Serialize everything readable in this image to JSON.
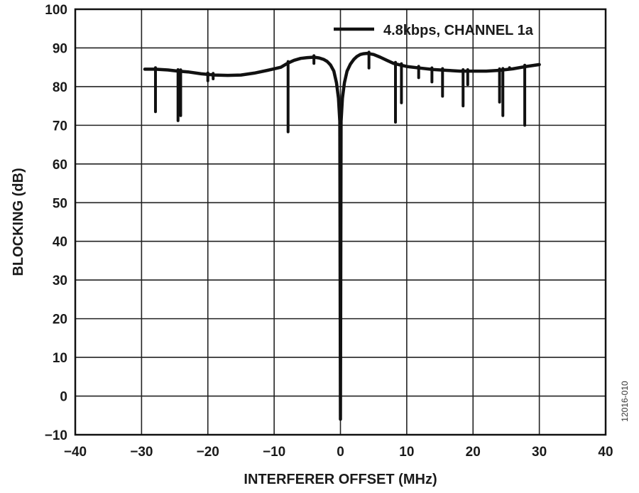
{
  "chart_data": {
    "type": "line",
    "title": "",
    "xlabel": "INTERFERER OFFSET (MHz)",
    "ylabel": "BLOCKING (dB)",
    "xlim": [
      -40,
      40
    ],
    "ylim": [
      -10,
      100
    ],
    "xticks": [
      -40,
      -30,
      -20,
      -10,
      0,
      10,
      20,
      30,
      40
    ],
    "yticks": [
      -10,
      0,
      10,
      20,
      30,
      40,
      50,
      60,
      70,
      80,
      90,
      100
    ],
    "xtick_labels": [
      "−40",
      "−30",
      "−20",
      "−10",
      "0",
      "10",
      "20",
      "30",
      "40"
    ],
    "ytick_labels": [
      "−10",
      "0",
      "10",
      "20",
      "30",
      "40",
      "50",
      "60",
      "70",
      "80",
      "90",
      "100"
    ],
    "grid": true,
    "legend_position": "top-right",
    "series": [
      {
        "name": "4.8kbps, CHANNEL 1a",
        "color": "#111111",
        "x": [
          -29.5,
          -28,
          -26,
          -24.5,
          -23,
          -21,
          -19,
          -17,
          -15,
          -13,
          -11,
          -9,
          -8,
          -7,
          -6,
          -5,
          -4,
          -3.2,
          -2.5,
          -2,
          -1.5,
          -1,
          -0.6,
          -0.3,
          -0.1,
          0,
          0.1,
          0.3,
          0.6,
          1,
          1.5,
          2,
          2.5,
          3,
          3.5,
          4,
          5,
          6,
          7,
          8,
          9,
          10,
          12,
          14,
          16,
          18,
          20,
          22,
          24,
          26,
          28,
          30
        ],
        "y": [
          84.5,
          84.5,
          84.3,
          84,
          83.8,
          83.3,
          83,
          82.9,
          83,
          83.5,
          84.2,
          85,
          86,
          86.8,
          87.3,
          87.5,
          87.6,
          87.4,
          87,
          86.5,
          85.6,
          84,
          81,
          77,
          71,
          -6,
          71,
          77,
          81,
          84,
          85.8,
          87,
          87.8,
          88.3,
          88.5,
          88.6,
          88.3,
          87.6,
          86.8,
          86,
          85.6,
          85.2,
          84.8,
          84.4,
          84.2,
          84,
          84,
          84,
          84.2,
          84.6,
          85.2,
          85.7
        ]
      }
    ],
    "spurs": [
      {
        "x": -27.9,
        "y": 73.5
      },
      {
        "x": -24.5,
        "y": 71.2
      },
      {
        "x": -24.1,
        "y": 72.5
      },
      {
        "x": -20,
        "y": 81.5
      },
      {
        "x": -19.2,
        "y": 82
      },
      {
        "x": -7.9,
        "y": 68.3
      },
      {
        "x": -4,
        "y": 86
      },
      {
        "x": 4.3,
        "y": 84.8
      },
      {
        "x": 8.3,
        "y": 70.8
      },
      {
        "x": 9.2,
        "y": 75.8
      },
      {
        "x": 11.8,
        "y": 82.3
      },
      {
        "x": 13.8,
        "y": 81.2
      },
      {
        "x": 15.4,
        "y": 77.5
      },
      {
        "x": 18.5,
        "y": 75
      },
      {
        "x": 19.2,
        "y": 80.5
      },
      {
        "x": 24,
        "y": 76
      },
      {
        "x": 24.5,
        "y": 72.5
      },
      {
        "x": 25.5,
        "y": 84.5
      },
      {
        "x": 27.8,
        "y": 70
      }
    ],
    "figure_id": "12016-010"
  }
}
